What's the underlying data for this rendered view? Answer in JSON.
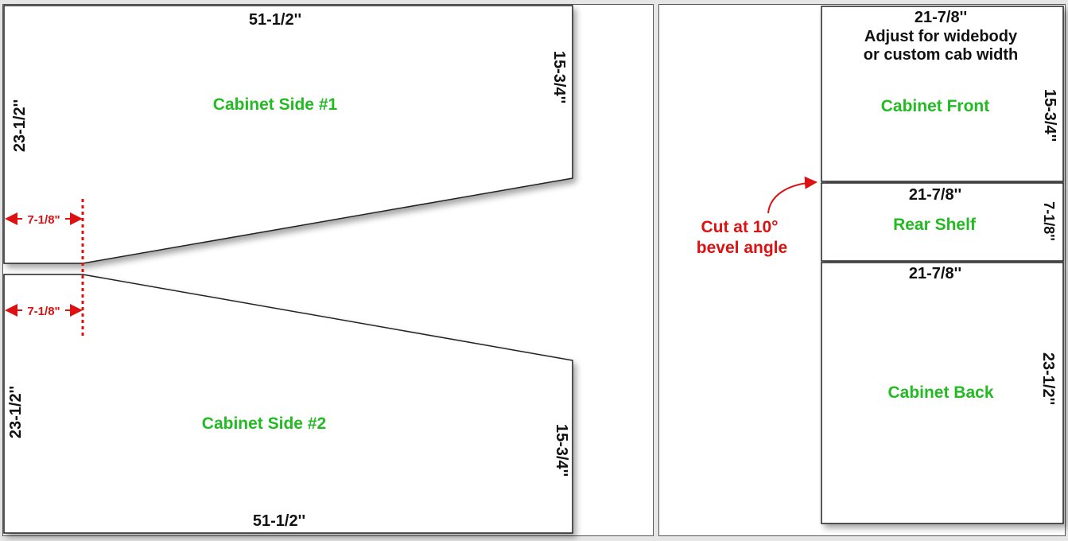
{
  "side1": {
    "label": "Cabinet Side #1",
    "top_dim": "51-1/2''",
    "left_dim": "23-1/2''",
    "right_dim": "15-3/4''",
    "offset_dim": "7-1/8\""
  },
  "side2": {
    "label": "Cabinet Side #2",
    "bottom_dim": "51-1/2''",
    "left_dim": "23-1/2''",
    "right_dim": "15-3/4''",
    "offset_dim": "7-1/8\""
  },
  "front": {
    "label": "Cabinet Front",
    "top_dim": "21-7/8''",
    "note_line1": "Adjust for widebody",
    "note_line2": "or custom cab width",
    "right_dim": "15-3/4''"
  },
  "shelf": {
    "label": "Rear Shelf",
    "top_dim": "21-7/8''",
    "right_dim": "7-1/8''"
  },
  "back": {
    "label": "Cabinet Back",
    "top_dim": "21-7/8''",
    "right_dim": "23-1/2''"
  },
  "bevel_note": {
    "line1": "Cut at 10°",
    "line2": "bevel angle"
  },
  "colors": {
    "label": "#22bb22",
    "annotation": "#dd1111",
    "dimension": "#111111",
    "outline": "#222222"
  }
}
